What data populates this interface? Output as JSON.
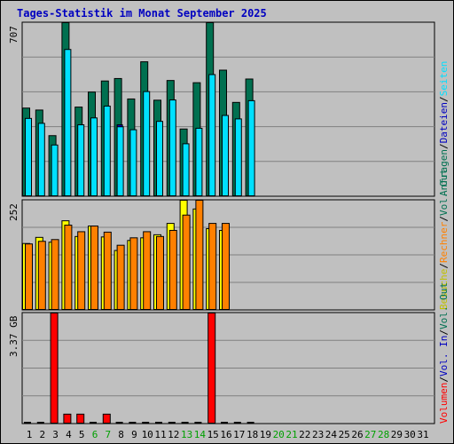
{
  "chart_data": {
    "type": "bar",
    "title": "Tages-Statistik im Monat September 2025",
    "days": [
      "1",
      "2",
      "3",
      "4",
      "5",
      "6",
      "7",
      "8",
      "9",
      "10",
      "11",
      "12",
      "13",
      "14",
      "15",
      "16",
      "17",
      "18",
      "19",
      "20",
      "21",
      "22",
      "23",
      "24",
      "25",
      "26",
      "27",
      "28",
      "29",
      "30",
      "31"
    ],
    "weekend_days": [
      "6",
      "7",
      "13",
      "14",
      "20",
      "21",
      "27",
      "28"
    ],
    "panels": [
      {
        "name": "hits-pages",
        "ymax_label": "707",
        "ylim": [
          0,
          707
        ],
        "series": [
          {
            "name": "Anfragen",
            "color": "#007050",
            "values": [
              360,
              352,
              248,
              707,
              364,
              425,
              470,
              480,
              397,
              548,
              392,
              472,
              275,
              463,
              707,
              514,
              383,
              478
            ]
          },
          {
            "name": "Dateien",
            "color": "#0000c0",
            "values": [
              0,
              0,
              0,
              479,
              0,
              0,
              0,
              292,
              0,
              0,
              0,
              0,
              0,
              0,
              0,
              0,
              0,
              0
            ]
          },
          {
            "name": "Seiten",
            "color": "#00e0ff",
            "values": [
              318,
              298,
              210,
              598,
              292,
              320,
              368,
              284,
              272,
              427,
              306,
              393,
              215,
              278,
              496,
              330,
              316,
              390
            ]
          }
        ],
        "legend_labels": [
          "Anfragen",
          "/",
          "Dateien",
          "/",
          "Seiten"
        ]
      },
      {
        "name": "visits-kb",
        "ymax_label": "252",
        "ylim": [
          0,
          252
        ],
        "series": [
          {
            "name": "Besuche",
            "color": "#ffff00",
            "values": [
              153,
              167,
              156,
              205,
              169,
              193,
              168,
              137,
              160,
              166,
              173,
              199,
              252,
              232,
              187,
              183,
              0,
              0
            ]
          },
          {
            "name": "Rechner",
            "color": "#ff8000",
            "values": [
              152,
              158,
              162,
              195,
              180,
              193,
              179,
              149,
              166,
              180,
              169,
              183,
              218,
              252,
              199,
              199,
              0,
              0
            ]
          }
        ],
        "legend_labels": [
          "Besuche",
          "/",
          "Rechner",
          "/",
          "Vol. Out"
        ]
      },
      {
        "name": "volume",
        "ymax_label": "3.37 GB",
        "ylim": [
          0,
          3.37
        ],
        "series": [
          {
            "name": "Volumen",
            "color": "#ff0000",
            "values": [
              0,
              0,
              3.37,
              0.3,
              0.3,
              0,
              0.3,
              0,
              0,
              0,
              0,
              0,
              0,
              0,
              3.37,
              0,
              0,
              0
            ]
          }
        ],
        "legend_labels": [
          "Volumen",
          "/",
          "Vol. In",
          "/",
          "Vol. Out"
        ]
      }
    ],
    "legend_colors": {
      "Anfragen": "#007050",
      "Dateien": "#0000c0",
      "Seiten": "#00e0ff",
      "Besuche": "#c0c000",
      "Rechner": "#ff8000",
      "Vol. Out": "#007050",
      "Volumen": "#ff0000",
      "Vol. In": "#0000c0",
      "sep": "#000000"
    },
    "grid": true,
    "legend_position": "right-vertical"
  }
}
